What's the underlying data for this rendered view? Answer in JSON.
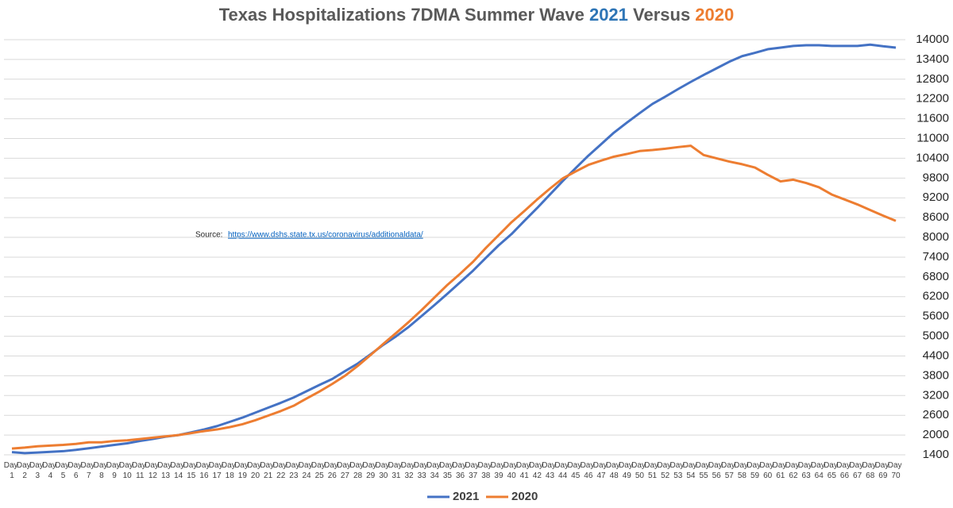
{
  "chart_data": {
    "type": "line",
    "title": [
      "Texas Hospitalizations 7DMA  Summer Wave  ",
      "2021",
      " Versus ",
      "2020"
    ],
    "annotation": "Source:",
    "source_url": "https://www.dshs.state.tx.us/coronavirus/additionaldata/",
    "categories": [
      "Day 1",
      "Day 2",
      "Day 3",
      "Day 4",
      "Day 5",
      "Day 6",
      "Day 7",
      "Day 8",
      "Day 9",
      "Day 10",
      "Day 11",
      "Day 12",
      "Day 13",
      "Day 14",
      "Day 15",
      "Day 16",
      "Day 17",
      "Day 18",
      "Day 19",
      "Day 20",
      "Day 21",
      "Day 22",
      "Day 23",
      "Day 24",
      "Day 25",
      "Day 26",
      "Day 27",
      "Day 28",
      "Day 29",
      "Day 30",
      "Day 31",
      "Day 32",
      "Day 33",
      "Day 34",
      "Day 35",
      "Day 36",
      "Day 37",
      "Day 38",
      "Day 39",
      "Day 40",
      "Day 41",
      "Day 42",
      "Day 43",
      "Day 44",
      "Day 45",
      "Day 46",
      "Day 47",
      "Day 48",
      "Day 49",
      "Day 50",
      "Day 51",
      "Day 52",
      "Day 53",
      "Day 54",
      "Day 55",
      "Day 56",
      "Day 57",
      "Day 58",
      "Day 59",
      "Day 60",
      "Day 61",
      "Day 62",
      "Day 63",
      "Day 64",
      "Day 65",
      "Day 66",
      "Day 67",
      "Day 68",
      "Day 69",
      "Day 70"
    ],
    "series": [
      {
        "name": "2021",
        "color": "#4472c4",
        "values": [
          1480,
          1450,
          1470,
          1490,
          1510,
          1550,
          1600,
          1650,
          1700,
          1750,
          1820,
          1880,
          1950,
          2000,
          2080,
          2170,
          2270,
          2400,
          2530,
          2680,
          2830,
          2980,
          3140,
          3330,
          3520,
          3700,
          3940,
          4170,
          4450,
          4740,
          5000,
          5290,
          5620,
          5950,
          6290,
          6640,
          6990,
          7380,
          7760,
          8100,
          8500,
          8890,
          9300,
          9710,
          10100,
          10480,
          10830,
          11180,
          11480,
          11770,
          12050,
          12270,
          12500,
          12720,
          12930,
          13130,
          13330,
          13500,
          13600,
          13710,
          13760,
          13810,
          13830,
          13830,
          13810,
          13810,
          13810,
          13850,
          13800,
          13760
        ]
      },
      {
        "name": "2020",
        "color": "#ed7d31",
        "values": [
          1590,
          1620,
          1660,
          1680,
          1700,
          1730,
          1780,
          1780,
          1820,
          1840,
          1880,
          1920,
          1960,
          2000,
          2060,
          2120,
          2170,
          2240,
          2330,
          2450,
          2590,
          2730,
          2890,
          3110,
          3320,
          3550,
          3800,
          4100,
          4430,
          4770,
          5100,
          5440,
          5800,
          6180,
          6560,
          6900,
          7260,
          7680,
          8070,
          8460,
          8800,
          9150,
          9480,
          9790,
          10000,
          10200,
          10330,
          10450,
          10530,
          10620,
          10650,
          10690,
          10740,
          10780,
          10500,
          10400,
          10300,
          10220,
          10120,
          9900,
          9700,
          9750,
          9650,
          9520,
          9300,
          9150,
          9000,
          8830,
          8660,
          8500
        ]
      }
    ],
    "ylim": [
      1400,
      14000
    ],
    "yticks": [
      1400,
      2000,
      2600,
      3200,
      3800,
      4400,
      5000,
      5600,
      6200,
      6800,
      7400,
      8000,
      8600,
      9200,
      9800,
      10400,
      11000,
      11600,
      12200,
      12800,
      13400,
      14000
    ],
    "grid": true,
    "legend": "bottom"
  }
}
